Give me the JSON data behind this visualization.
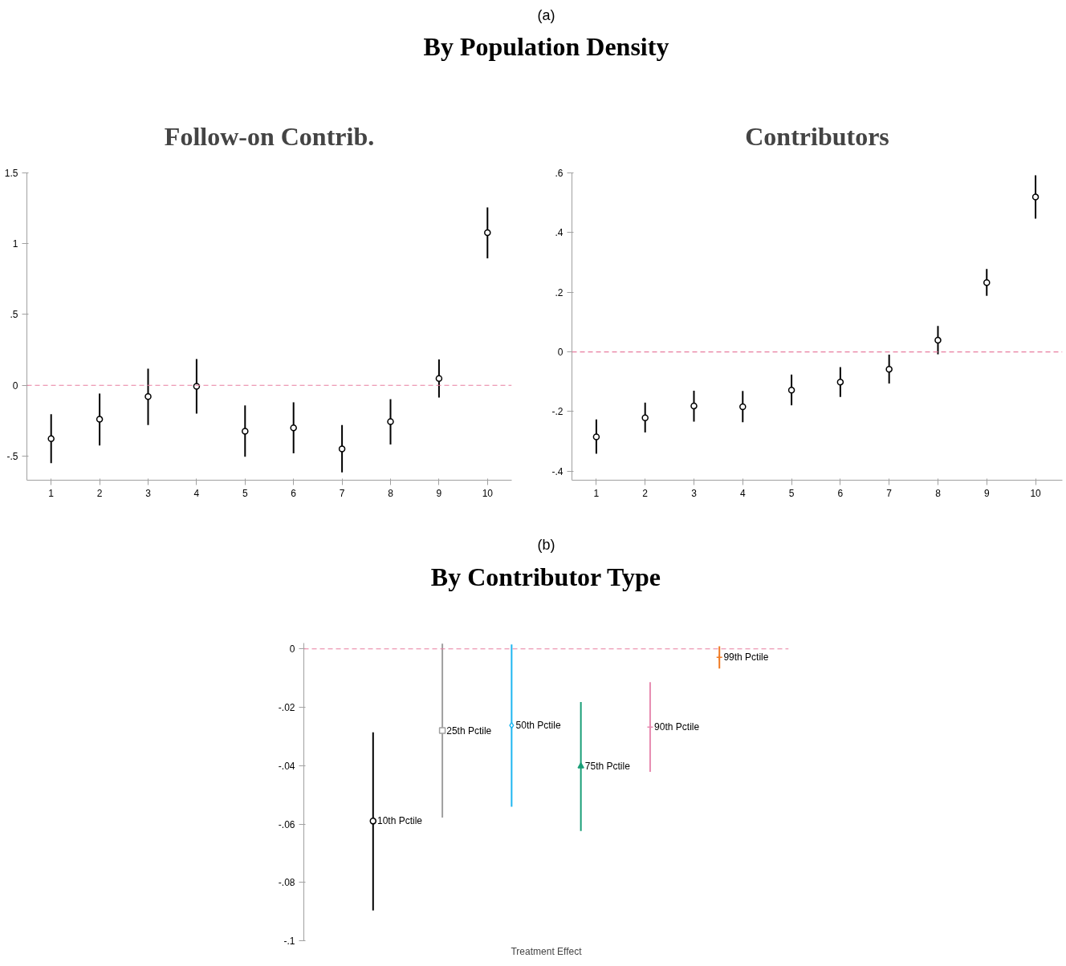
{
  "chart_data": [
    {
      "type": "scatter",
      "title": "Follow-on Contrib.",
      "annotations": [
        "(a)",
        "By Population Density"
      ],
      "x": [
        1,
        2,
        3,
        4,
        5,
        6,
        7,
        8,
        9,
        10
      ],
      "xlim": [
        0.5,
        10.5
      ],
      "xticks": [
        1,
        2,
        3,
        4,
        5,
        6,
        7,
        8,
        9,
        10
      ],
      "ylim": [
        -0.67,
        1.5
      ],
      "yticks": [
        {
          "value": -0.5,
          "label": "-.5"
        },
        0,
        {
          "value": 0.5,
          "label": ".5"
        },
        1,
        1.5
      ],
      "marker": "circle",
      "color": "#000000",
      "values": [
        -0.377,
        -0.24,
        -0.08,
        -0.007,
        -0.324,
        -0.3,
        -0.449,
        -0.257,
        0.048,
        1.078
      ],
      "errors": [
        [
          -0.55,
          -0.204
        ],
        [
          -0.425,
          -0.058
        ],
        [
          -0.28,
          0.118
        ],
        [
          -0.2,
          0.185
        ],
        [
          -0.504,
          -0.142
        ],
        [
          -0.48,
          -0.12
        ],
        [
          -0.615,
          -0.28
        ],
        [
          -0.418,
          -0.098
        ],
        [
          -0.086,
          0.182
        ],
        [
          0.896,
          1.256
        ]
      ],
      "ref_lines": [
        {
          "axis": "y",
          "value": 0,
          "color": "#e87ea0",
          "line_style": "dashed"
        }
      ]
    },
    {
      "type": "scatter",
      "title": "Contributors",
      "x": [
        1,
        2,
        3,
        4,
        5,
        6,
        7,
        8,
        9,
        10
      ],
      "xlim": [
        0.5,
        10.55
      ],
      "xticks": [
        1,
        2,
        3,
        4,
        5,
        6,
        7,
        8,
        9,
        10
      ],
      "ylim": [
        -0.43,
        0.6
      ],
      "yticks": [
        {
          "value": -0.4,
          "label": "-.4"
        },
        {
          "value": -0.2,
          "label": "-.2"
        },
        0,
        {
          "value": 0.2,
          "label": ".2"
        },
        {
          "value": 0.4,
          "label": ".4"
        },
        {
          "value": 0.6,
          "label": ".6"
        }
      ],
      "marker": "circle",
      "color": "#000000",
      "values": [
        -0.285,
        -0.221,
        -0.181,
        -0.184,
        -0.128,
        -0.101,
        -0.058,
        0.039,
        0.232,
        0.519
      ],
      "errors": [
        [
          -0.341,
          -0.226
        ],
        [
          -0.27,
          -0.17
        ],
        [
          -0.234,
          -0.13
        ],
        [
          -0.236,
          -0.131
        ],
        [
          -0.179,
          -0.076
        ],
        [
          -0.151,
          -0.051
        ],
        [
          -0.106,
          -0.009
        ],
        [
          -0.008,
          0.087
        ],
        [
          0.188,
          0.278
        ],
        [
          0.447,
          0.592
        ]
      ],
      "ref_lines": [
        {
          "axis": "y",
          "value": 0,
          "color": "#e87ea0",
          "line_style": "dashed"
        }
      ]
    },
    {
      "type": "scatter",
      "title": "By Contributor Type",
      "annotations": [
        "(b)"
      ],
      "xlabel": "Treatment Effect",
      "tick_labels": "y",
      "categories": [
        null,
        null,
        null,
        null,
        null,
        null
      ],
      "ylim": [
        -0.1,
        0.002
      ],
      "yticks": [
        {
          "value": -0.1,
          "label": "-.1"
        },
        {
          "value": -0.08,
          "label": "-.08"
        },
        {
          "value": -0.06,
          "label": "-.06"
        },
        {
          "value": -0.04,
          "label": "-.04"
        },
        {
          "value": -0.02,
          "label": "-.02"
        },
        0
      ],
      "series": [
        {
          "name": "10th Pctile",
          "color": "#000000",
          "marker": "circle",
          "values": [
            -0.059,
            null,
            null,
            null,
            null,
            null
          ],
          "errors": [
            [
              -0.0896,
              -0.0286
            ],
            null,
            null,
            null,
            null,
            null
          ]
        },
        {
          "name": "25th Pctile",
          "color": "#a0a0a0",
          "marker": "square",
          "values": [
            null,
            -0.028,
            null,
            null,
            null,
            null
          ],
          "errors": [
            null,
            [
              -0.0578,
              0.0018
            ],
            null,
            null,
            null,
            null
          ]
        },
        {
          "name": "50th Pctile",
          "color": "#1fb6f0",
          "marker": "diamond",
          "values": [
            null,
            null,
            -0.0262,
            null,
            null,
            null
          ],
          "errors": [
            null,
            null,
            [
              -0.0541,
              0.0015
            ],
            null,
            null,
            null
          ]
        },
        {
          "name": "75th Pctile",
          "color": "#1a9e77",
          "marker": "triangle",
          "values": [
            null,
            null,
            null,
            -0.0402,
            null,
            null
          ],
          "errors": [
            null,
            null,
            null,
            [
              -0.0624,
              -0.0182
            ],
            null,
            null
          ]
        },
        {
          "name": "90th Pctile",
          "color": "#e78ab0",
          "marker": "cross",
          "values": [
            null,
            null,
            null,
            null,
            -0.0268,
            null
          ],
          "errors": [
            null,
            null,
            null,
            null,
            [
              -0.0421,
              -0.0114
            ],
            null
          ]
        },
        {
          "name": "99th Pctile",
          "color": "#f07a22",
          "marker": "cross",
          "values": [
            null,
            null,
            null,
            null,
            null,
            -0.0029
          ],
          "errors": [
            null,
            null,
            null,
            null,
            null,
            [
              -0.0067,
              0.0009
            ]
          ]
        }
      ],
      "ref_lines": [
        {
          "axis": "y",
          "value": 0,
          "color": "#e87ea0",
          "line_style": "dashed"
        }
      ]
    }
  ]
}
